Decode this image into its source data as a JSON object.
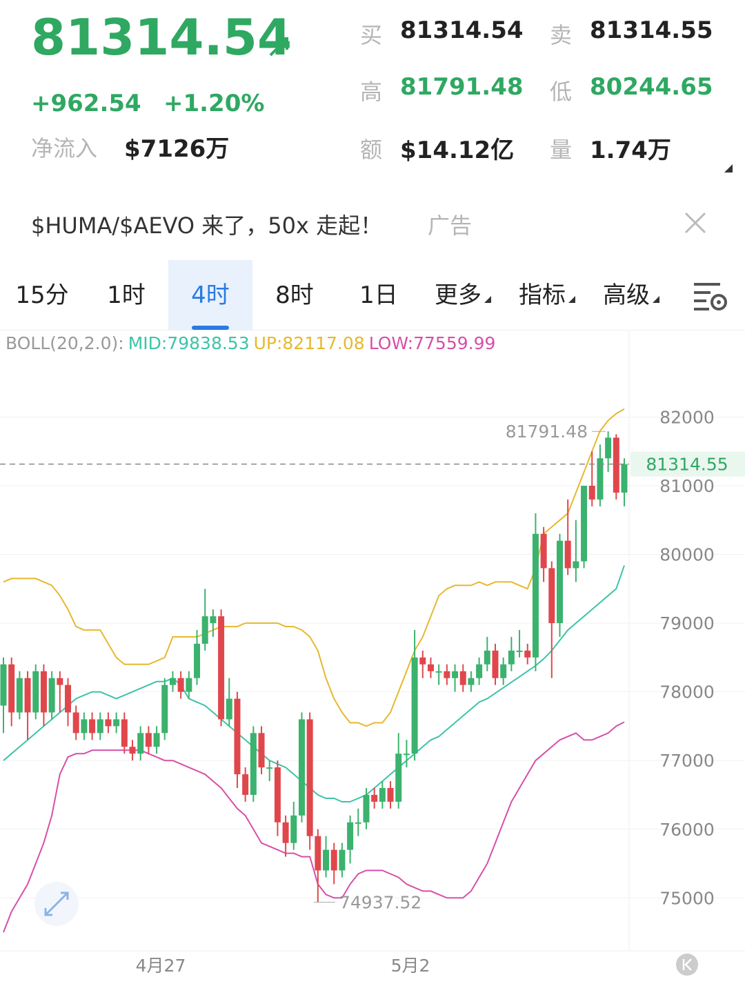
{
  "header": {
    "price": "81314.54",
    "change": "+962.54",
    "change_pct": "+1.20%",
    "inflow_label": "净流入",
    "inflow": "$7126万",
    "stats": [
      {
        "label": "买",
        "value": "81314.54"
      },
      {
        "label": "卖",
        "value": "81314.55"
      },
      {
        "label": "高",
        "value": "81791.48"
      },
      {
        "label": "低",
        "value": "80244.65"
      },
      {
        "label": "额",
        "value": "$14.12亿"
      },
      {
        "label": "量",
        "value": "1.74万"
      }
    ]
  },
  "ad": {
    "text": "$HUMA/$AEVO 来了，50x 走起！",
    "tag": "广告"
  },
  "tabs": [
    "15分",
    "1时",
    "4时",
    "8时",
    "1日",
    "更多",
    "指标",
    "高级"
  ],
  "chart_data": {
    "type": "candlestick",
    "legend_title": "BOLL(20,2.0):",
    "grid": true,
    "ylim": [
      74260,
      83250
    ],
    "yticks": [
      75000,
      76000,
      77000,
      78000,
      79000,
      80000,
      81000,
      82000
    ],
    "x_labels": [
      "4月27",
      "5月2"
    ],
    "high_label": 81791.48,
    "low_label": 74937.52,
    "last_price": 81314.55,
    "up_color": "#3bb26d",
    "down_color": "#e0474c",
    "candles": [
      [
        77800,
        78500,
        77400,
        78400
      ],
      [
        78400,
        78500,
        77500,
        77700
      ],
      [
        77700,
        78300,
        77600,
        78200
      ],
      [
        78200,
        78300,
        77300,
        77700
      ],
      [
        77700,
        78400,
        77600,
        78300
      ],
      [
        78300,
        78400,
        77500,
        77700
      ],
      [
        77700,
        78300,
        77600,
        78200
      ],
      [
        78200,
        78300,
        77700,
        78100
      ],
      [
        78100,
        78200,
        77500,
        77700
      ],
      [
        77700,
        77800,
        77300,
        77400
      ],
      [
        77400,
        77700,
        77300,
        77600
      ],
      [
        77600,
        77700,
        77300,
        77400
      ],
      [
        77400,
        77700,
        77300,
        77600
      ],
      [
        77600,
        77700,
        77400,
        77500
      ],
      [
        77500,
        77700,
        77400,
        77600
      ],
      [
        77600,
        77700,
        77100,
        77200
      ],
      [
        77200,
        77300,
        77000,
        77100
      ],
      [
        77100,
        77500,
        77000,
        77400
      ],
      [
        77400,
        77500,
        77100,
        77200
      ],
      [
        77200,
        77500,
        77100,
        77400
      ],
      [
        77400,
        78200,
        77300,
        78100
      ],
      [
        78100,
        78300,
        78000,
        78200
      ],
      [
        78200,
        78300,
        77900,
        78000
      ],
      [
        78000,
        78300,
        77900,
        78200
      ],
      [
        78200,
        78900,
        78100,
        78700
      ],
      [
        78700,
        79500,
        78600,
        79100
      ],
      [
        79000,
        79200,
        78800,
        79100
      ],
      [
        79100,
        79200,
        77500,
        77600
      ],
      [
        77600,
        78200,
        77500,
        77900
      ],
      [
        77900,
        78000,
        76600,
        76800
      ],
      [
        76800,
        76900,
        76400,
        76500
      ],
      [
        76500,
        77500,
        76400,
        77400
      ],
      [
        77400,
        77500,
        76800,
        76900
      ],
      [
        76900,
        77000,
        76700,
        76900
      ],
      [
        76900,
        77000,
        75900,
        76100
      ],
      [
        76100,
        76200,
        75600,
        75800
      ],
      [
        75800,
        76400,
        75700,
        76200
      ],
      [
        76200,
        77700,
        76100,
        77600
      ],
      [
        77600,
        77700,
        75700,
        75900
      ],
      [
        75900,
        76000,
        74937.52,
        75400
      ],
      [
        75400,
        75900,
        75300,
        75700
      ],
      [
        75700,
        75800,
        75200,
        75400
      ],
      [
        75400,
        75800,
        75300,
        75700
      ],
      [
        75700,
        76200,
        75500,
        76100
      ],
      [
        76100,
        76300,
        75900,
        76100
      ],
      [
        76100,
        76600,
        76000,
        76500
      ],
      [
        76500,
        76600,
        76300,
        76400
      ],
      [
        76400,
        76700,
        76300,
        76600
      ],
      [
        76600,
        76700,
        76300,
        76400
      ],
      [
        76400,
        77400,
        76300,
        77100
      ],
      [
        77100,
        77300,
        76900,
        77100
      ],
      [
        77100,
        78900,
        77000,
        78500
      ],
      [
        78500,
        78600,
        78200,
        78400
      ],
      [
        78400,
        78500,
        78200,
        78300
      ],
      [
        78300,
        78400,
        78100,
        78300
      ],
      [
        78300,
        78400,
        78100,
        78200
      ],
      [
        78200,
        78400,
        78000,
        78300
      ],
      [
        78300,
        78400,
        78000,
        78100
      ],
      [
        78100,
        78300,
        78000,
        78200
      ],
      [
        78200,
        78500,
        78100,
        78400
      ],
      [
        78400,
        78800,
        78300,
        78600
      ],
      [
        78600,
        78700,
        78100,
        78200
      ],
      [
        78200,
        78500,
        78100,
        78400
      ],
      [
        78400,
        78800,
        78300,
        78600
      ],
      [
        78600,
        78900,
        78500,
        78600
      ],
      [
        78600,
        78700,
        78400,
        78500
      ],
      [
        78500,
        80600,
        78300,
        80300
      ],
      [
        80300,
        80400,
        79600,
        79800
      ],
      [
        79800,
        79900,
        78200,
        79000
      ],
      [
        79000,
        80300,
        78800,
        80200
      ],
      [
        80200,
        80800,
        79700,
        79800
      ],
      [
        79800,
        80500,
        79600,
        79900
      ],
      [
        79900,
        81000,
        79800,
        81000
      ],
      [
        81000,
        81500,
        80700,
        80800
      ],
      [
        80800,
        81600,
        80700,
        81400
      ],
      [
        81400,
        81791.48,
        81200,
        81700
      ],
      [
        81700,
        81750,
        80800,
        80900
      ],
      [
        80900,
        81400,
        80700,
        81314.55
      ]
    ],
    "series": [
      {
        "name": "MID:79838.53",
        "color": "#3cc3a8",
        "values": [
          77000,
          77100,
          77200,
          77300,
          77400,
          77500,
          77600,
          77700,
          77800,
          77900,
          77950,
          78000,
          78000,
          77950,
          77900,
          77950,
          78000,
          78050,
          78100,
          78150,
          78150,
          78200,
          78100,
          77900,
          77850,
          77800,
          77700,
          77600,
          77500,
          77400,
          77300,
          77200,
          77100,
          77000,
          76950,
          76900,
          76800,
          76700,
          76600,
          76500,
          76450,
          76450,
          76400,
          76400,
          76450,
          76500,
          76600,
          76700,
          76800,
          76900,
          77000,
          77100,
          77200,
          77300,
          77350,
          77450,
          77550,
          77650,
          77750,
          77850,
          77900,
          77980,
          78060,
          78140,
          78220,
          78300,
          78380,
          78480,
          78600,
          78750,
          78900,
          79000,
          79100,
          79200,
          79300,
          79400,
          79500,
          79838.53
        ]
      },
      {
        "name": "UP:82117.08",
        "color": "#e6b82e",
        "values": [
          79600,
          79650,
          79650,
          79650,
          79650,
          79600,
          79550,
          79400,
          79200,
          78950,
          78900,
          78900,
          78900,
          78700,
          78500,
          78400,
          78400,
          78400,
          78400,
          78450,
          78500,
          78800,
          78800,
          78800,
          78800,
          78850,
          78900,
          78950,
          78950,
          78950,
          79000,
          79000,
          79000,
          79000,
          79000,
          78950,
          78950,
          78900,
          78800,
          78600,
          78200,
          77900,
          77700,
          77550,
          77550,
          77500,
          77550,
          77550,
          77700,
          78000,
          78300,
          78600,
          78800,
          79100,
          79400,
          79500,
          79550,
          79550,
          79550,
          79600,
          79550,
          79600,
          79600,
          79600,
          79550,
          79500,
          79800,
          80300,
          80400,
          80500,
          80600,
          80900,
          81200,
          81500,
          81800,
          81950,
          82050,
          82117.08
        ]
      },
      {
        "name": "LOW:77559.99",
        "color": "#d64fa8",
        "values": [
          74500,
          74800,
          75000,
          75200,
          75500,
          75800,
          76200,
          76800,
          77050,
          77100,
          77100,
          77150,
          77150,
          77150,
          77150,
          77150,
          77150,
          77150,
          77100,
          77050,
          77000,
          77000,
          76950,
          76900,
          76850,
          76800,
          76700,
          76600,
          76450,
          76300,
          76200,
          76000,
          75800,
          75750,
          75700,
          75650,
          75650,
          75600,
          75600,
          75200,
          75050,
          75000,
          75000,
          75200,
          75350,
          75400,
          75400,
          75400,
          75350,
          75300,
          75200,
          75150,
          75100,
          75100,
          75050,
          75000,
          75000,
          75000,
          75100,
          75300,
          75500,
          75800,
          76100,
          76400,
          76600,
          76800,
          77000,
          77100,
          77200,
          77300,
          77350,
          77400,
          77300,
          77300,
          77350,
          77400,
          77500,
          77559.99
        ]
      }
    ]
  }
}
